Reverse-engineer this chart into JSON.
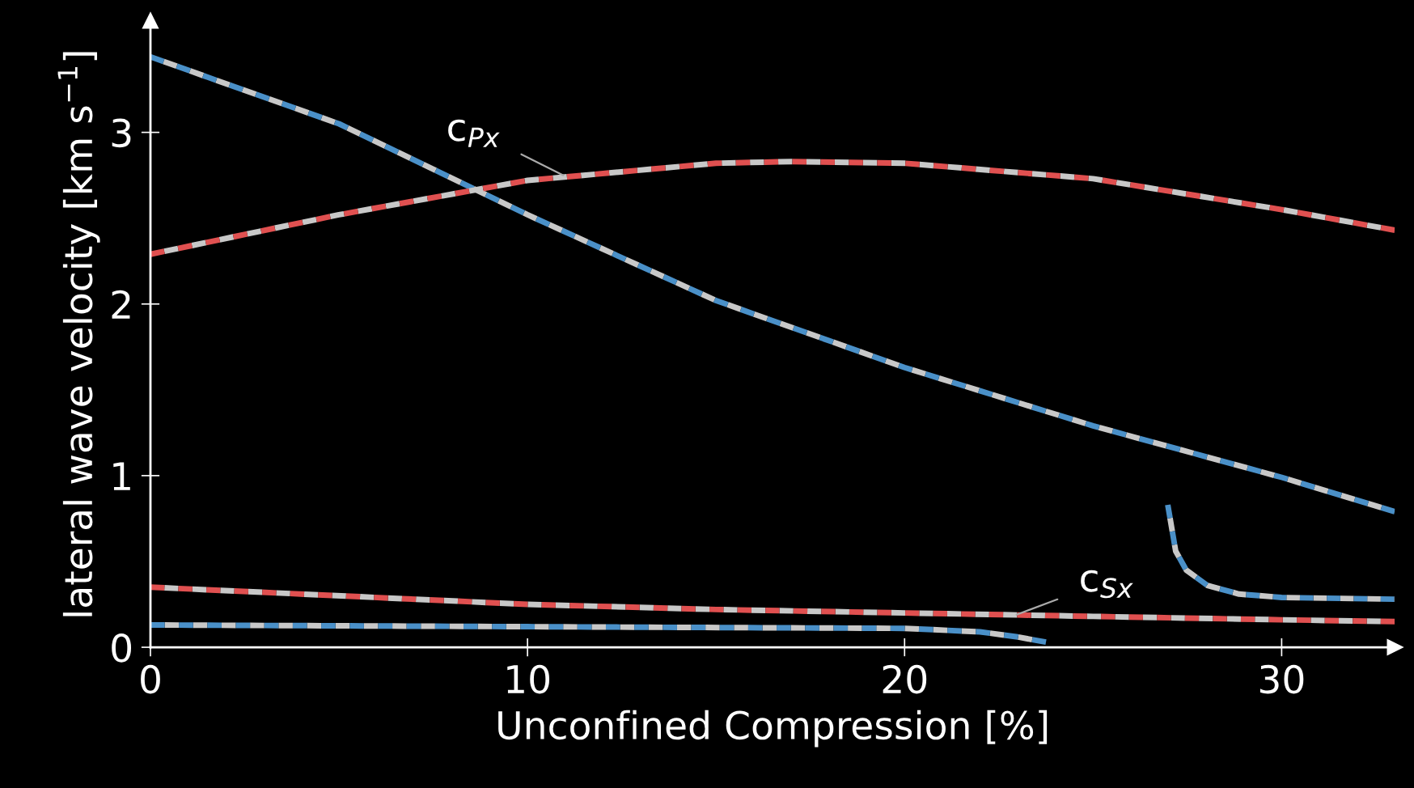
{
  "chart_data": {
    "type": "line",
    "xlabel": "Unconfined Compression [%]",
    "ylabel": "lateral wave velocity [km s$^{−1}$]",
    "xlim": [
      0,
      33
    ],
    "ylim": [
      0,
      3.65
    ],
    "xticks": [
      0,
      10,
      20,
      30
    ],
    "yticks": [
      0,
      1,
      2,
      3
    ],
    "grid": false,
    "legend": false,
    "marker": "none",
    "line_style": "dashed",
    "series": [
      {
        "color": "#4a90c8",
        "x": [
          0,
          5,
          10,
          15,
          20,
          25,
          30,
          33
        ],
        "values": [
          3.44,
          3.05,
          2.52,
          2.02,
          1.63,
          1.29,
          0.99,
          0.79
        ]
      },
      {
        "color": "#e05050",
        "x": [
          0,
          5,
          10,
          15,
          17,
          20,
          25,
          30,
          33
        ],
        "values": [
          2.29,
          2.52,
          2.72,
          2.82,
          2.83,
          2.82,
          2.73,
          2.55,
          2.43
        ]
      },
      {
        "color": "#e05050",
        "x": [
          0,
          10,
          15,
          20,
          25,
          30,
          33
        ],
        "values": [
          0.35,
          0.25,
          0.22,
          0.2,
          0.18,
          0.16,
          0.15
        ]
      },
      {
        "color": "#4a90c8",
        "x": [
          0,
          10,
          20,
          22,
          23,
          23.75
        ],
        "values": [
          0.13,
          0.12,
          0.11,
          0.09,
          0.06,
          0.03
        ]
      },
      {
        "color": "#4a90c8",
        "x": [
          26.98,
          27.19,
          27.47,
          28.03,
          28.87,
          30,
          33
        ],
        "values": [
          0.83,
          0.56,
          0.45,
          0.36,
          0.31,
          0.29,
          0.28
        ]
      }
    ],
    "annotations": [
      {
        "text": "c$_{Px}$",
        "x": 10.95,
        "y": 2.75
      },
      {
        "text": "c$_{Sx}$",
        "x": 22.97,
        "y": 0.19
      }
    ]
  }
}
